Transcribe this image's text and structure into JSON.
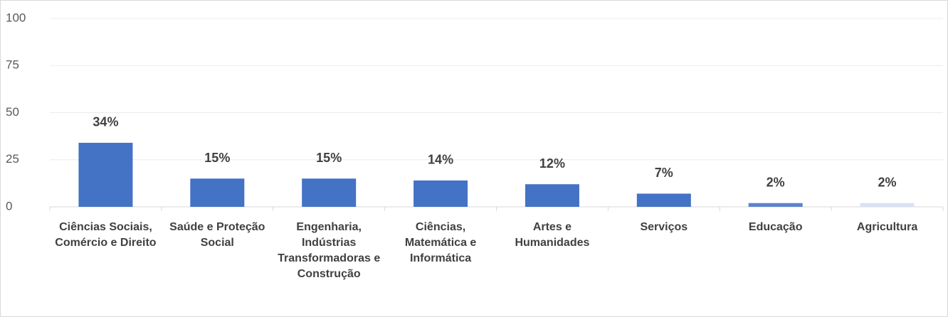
{
  "chart_data": {
    "type": "bar",
    "categories": [
      "Ciências Sociais, Comércio e Direito",
      "Saúde e Proteção Social",
      "Engenharia, Indústrias Transformadoras e Construção",
      "Ciências, Matemática e Informática",
      "Artes e Humanidades",
      "Serviços",
      "Educação",
      "Agricultura"
    ],
    "values": [
      34,
      15,
      15,
      14,
      12,
      7,
      2,
      2
    ],
    "value_labels": [
      "34%",
      "15%",
      "15%",
      "14%",
      "12%",
      "7%",
      "2%",
      "2%"
    ],
    "colors": [
      "#4472c4",
      "#4472c4",
      "#4472c4",
      "#4472c4",
      "#4472c4",
      "#4472c4",
      "#5b84cc",
      "#d9e2f3"
    ],
    "ylim": [
      0,
      100
    ],
    "yticks": [
      0,
      25,
      50,
      75,
      100
    ],
    "grid": true
  }
}
